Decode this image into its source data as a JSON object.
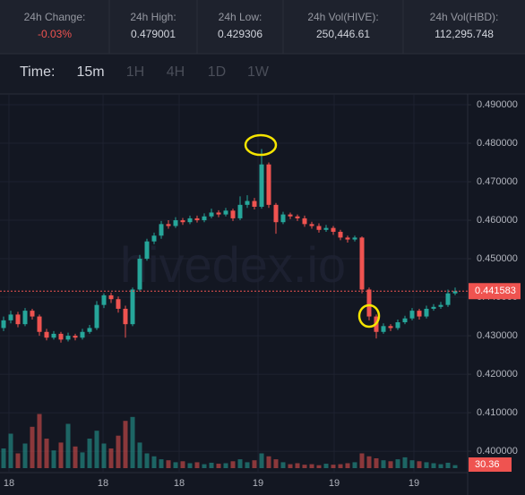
{
  "stats": [
    {
      "label": "24h Change:",
      "value": "-0.03%"
    },
    {
      "label": "24h High:",
      "value": "0.479001"
    },
    {
      "label": "24h Low:",
      "value": "0.429306"
    },
    {
      "label": "24h Vol(HIVE):",
      "value": "250,446.61"
    },
    {
      "label": "24h Vol(HBD):",
      "value": "112,295.748"
    }
  ],
  "time": {
    "label": "Time:",
    "options": [
      "15m",
      "1H",
      "4H",
      "1D",
      "1W"
    ]
  },
  "watermark": "hivedex.io",
  "chart_data": {
    "type": "candlestick",
    "up_color": "#26a69a",
    "down_color": "#ef5350",
    "ylim": [
      0.3956,
      0.4928
    ],
    "yticks": [
      {
        "value": 0.49,
        "label": "0.490000"
      },
      {
        "value": 0.48,
        "label": "0.480000"
      },
      {
        "value": 0.47,
        "label": "0.470000"
      },
      {
        "value": 0.46,
        "label": "0.460000"
      },
      {
        "value": 0.45,
        "label": "0.450000"
      },
      {
        "value": 0.44,
        "label": "0.440000"
      },
      {
        "value": 0.43,
        "label": "0.430000"
      },
      {
        "value": 0.42,
        "label": "0.420000"
      },
      {
        "value": 0.41,
        "label": "0.410000"
      },
      {
        "value": 0.4,
        "label": "0.400000"
      }
    ],
    "vlim": [
      0,
      1000
    ],
    "xlabels": [
      "18",
      "18",
      "18",
      "19",
      "19",
      "19"
    ],
    "candles": [
      [
        0.432,
        0.435,
        0.4312,
        0.434
      ],
      [
        0.434,
        0.4365,
        0.4332,
        0.4355
      ],
      [
        0.4355,
        0.4362,
        0.4322,
        0.433
      ],
      [
        0.433,
        0.4372,
        0.4325,
        0.4365
      ],
      [
        0.4365,
        0.437,
        0.4342,
        0.435
      ],
      [
        0.435,
        0.4355,
        0.43,
        0.431
      ],
      [
        0.431,
        0.4318,
        0.4288,
        0.4295
      ],
      [
        0.4295,
        0.4312,
        0.429,
        0.4305
      ],
      [
        0.4305,
        0.431,
        0.4282,
        0.429
      ],
      [
        0.429,
        0.4308,
        0.4285,
        0.43
      ],
      [
        0.43,
        0.4305,
        0.4288,
        0.4295
      ],
      [
        0.4295,
        0.4318,
        0.429,
        0.431
      ],
      [
        0.431,
        0.4328,
        0.4305,
        0.432
      ],
      [
        0.432,
        0.439,
        0.4315,
        0.438
      ],
      [
        0.438,
        0.441,
        0.4372,
        0.4405
      ],
      [
        0.4405,
        0.4412,
        0.4385,
        0.4395
      ],
      [
        0.4395,
        0.4402,
        0.436,
        0.437
      ],
      [
        0.437,
        0.4378,
        0.4295,
        0.433
      ],
      [
        0.433,
        0.4425,
        0.4325,
        0.442
      ],
      [
        0.442,
        0.451,
        0.4415,
        0.45
      ],
      [
        0.45,
        0.4552,
        0.4495,
        0.4545
      ],
      [
        0.4545,
        0.4568,
        0.4538,
        0.456
      ],
      [
        0.456,
        0.4598,
        0.4552,
        0.459
      ],
      [
        0.459,
        0.46,
        0.4578,
        0.4585
      ],
      [
        0.4585,
        0.4608,
        0.458,
        0.46
      ],
      [
        0.46,
        0.4606,
        0.4588,
        0.4595
      ],
      [
        0.4595,
        0.4612,
        0.459,
        0.4605
      ],
      [
        0.4605,
        0.4612,
        0.4594,
        0.46
      ],
      [
        0.46,
        0.4618,
        0.4595,
        0.461
      ],
      [
        0.461,
        0.463,
        0.4605,
        0.462
      ],
      [
        0.462,
        0.4626,
        0.4608,
        0.4615
      ],
      [
        0.4615,
        0.4632,
        0.461,
        0.4625
      ],
      [
        0.4625,
        0.463,
        0.4598,
        0.4605
      ],
      [
        0.4605,
        0.4662,
        0.46,
        0.464
      ],
      [
        0.464,
        0.4665,
        0.4632,
        0.465
      ],
      [
        0.465,
        0.4658,
        0.4628,
        0.4635
      ],
      [
        0.4635,
        0.4785,
        0.463,
        0.4745
      ],
      [
        0.4745,
        0.475,
        0.4632,
        0.464
      ],
      [
        0.464,
        0.4645,
        0.4565,
        0.4595
      ],
      [
        0.4595,
        0.4622,
        0.459,
        0.4615
      ],
      [
        0.4615,
        0.462,
        0.4603,
        0.461
      ],
      [
        0.461,
        0.4615,
        0.4598,
        0.4605
      ],
      [
        0.4605,
        0.4612,
        0.4583,
        0.459
      ],
      [
        0.459,
        0.4596,
        0.4578,
        0.4585
      ],
      [
        0.4585,
        0.4592,
        0.4568,
        0.4575
      ],
      [
        0.4575,
        0.4588,
        0.457,
        0.458
      ],
      [
        0.458,
        0.4585,
        0.4562,
        0.457
      ],
      [
        0.457,
        0.4575,
        0.4548,
        0.4555
      ],
      [
        0.4555,
        0.456,
        0.4542,
        0.455
      ],
      [
        0.455,
        0.456,
        0.4545,
        0.4555
      ],
      [
        0.4555,
        0.4558,
        0.441,
        0.442
      ],
      [
        0.442,
        0.4425,
        0.434,
        0.435
      ],
      [
        0.435,
        0.4355,
        0.4293,
        0.431
      ],
      [
        0.431,
        0.4332,
        0.4305,
        0.4325
      ],
      [
        0.4325,
        0.433,
        0.4312,
        0.432
      ],
      [
        0.432,
        0.4342,
        0.4315,
        0.4335
      ],
      [
        0.4335,
        0.4352,
        0.433,
        0.4345
      ],
      [
        0.4345,
        0.4372,
        0.434,
        0.4365
      ],
      [
        0.4365,
        0.437,
        0.4342,
        0.435
      ],
      [
        0.435,
        0.4378,
        0.4345,
        0.437
      ],
      [
        0.437,
        0.4382,
        0.4365,
        0.4375
      ],
      [
        0.4375,
        0.4388,
        0.437,
        0.438
      ],
      [
        0.438,
        0.442,
        0.4375,
        0.441
      ],
      [
        0.441,
        0.4425,
        0.4405,
        0.441583
      ]
    ],
    "volumes": [
      200,
      350,
      150,
      250,
      420,
      550,
      300,
      180,
      260,
      450,
      220,
      160,
      300,
      380,
      250,
      200,
      330,
      480,
      520,
      260,
      150,
      120,
      90,
      80,
      60,
      70,
      50,
      60,
      40,
      55,
      45,
      50,
      70,
      90,
      60,
      80,
      150,
      120,
      90,
      60,
      40,
      50,
      35,
      40,
      30,
      45,
      35,
      40,
      50,
      60,
      150,
      120,
      100,
      80,
      70,
      90,
      110,
      80,
      70,
      60,
      50,
      40,
      55,
      30.36
    ]
  }
}
